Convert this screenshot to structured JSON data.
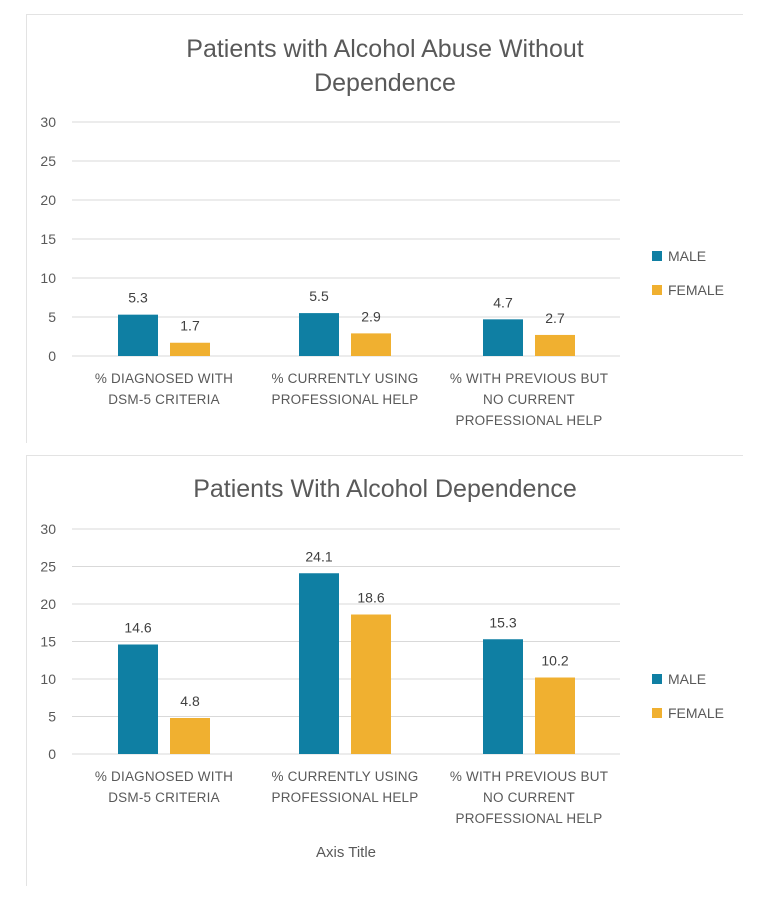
{
  "colors": {
    "male": "#0f7fa3",
    "female": "#f0b030"
  },
  "chart_data": [
    {
      "type": "bar",
      "title": [
        "Patients with Alcohol Abuse Without",
        "Dependence"
      ],
      "categories": [
        [
          "% DIAGNOSED WITH",
          "DSM-5 CRITERIA"
        ],
        [
          "% CURRENTLY USING",
          "PROFESSIONAL HELP"
        ],
        [
          "% WITH PREVIOUS BUT",
          "NO CURRENT",
          "PROFESSIONAL HELP"
        ]
      ],
      "series": [
        {
          "name": "MALE",
          "values": [
            5.3,
            5.5,
            4.7
          ]
        },
        {
          "name": "FEMALE",
          "values": [
            1.7,
            2.9,
            2.7
          ]
        }
      ],
      "yticks": [
        0,
        5,
        10,
        15,
        20,
        25,
        30
      ],
      "ylim": [
        0,
        30
      ],
      "xlabel": "",
      "ylabel": "",
      "grid": true,
      "legend": "right"
    },
    {
      "type": "bar",
      "title": [
        "Patients With Alcohol Dependence"
      ],
      "categories": [
        [
          "% DIAGNOSED WITH",
          "DSM-5 CRITERIA"
        ],
        [
          "% CURRENTLY USING",
          "PROFESSIONAL HELP"
        ],
        [
          "% WITH PREVIOUS BUT",
          "NO CURRENT",
          "PROFESSIONAL HELP"
        ]
      ],
      "series": [
        {
          "name": "MALE",
          "values": [
            14.6,
            24.1,
            15.3
          ]
        },
        {
          "name": "FEMALE",
          "values": [
            4.8,
            18.6,
            10.2
          ]
        }
      ],
      "yticks": [
        0,
        5,
        10,
        15,
        20,
        25,
        30
      ],
      "ylim": [
        0,
        30
      ],
      "xlabel": "Axis Title",
      "ylabel": "",
      "grid": true,
      "legend": "right"
    }
  ]
}
